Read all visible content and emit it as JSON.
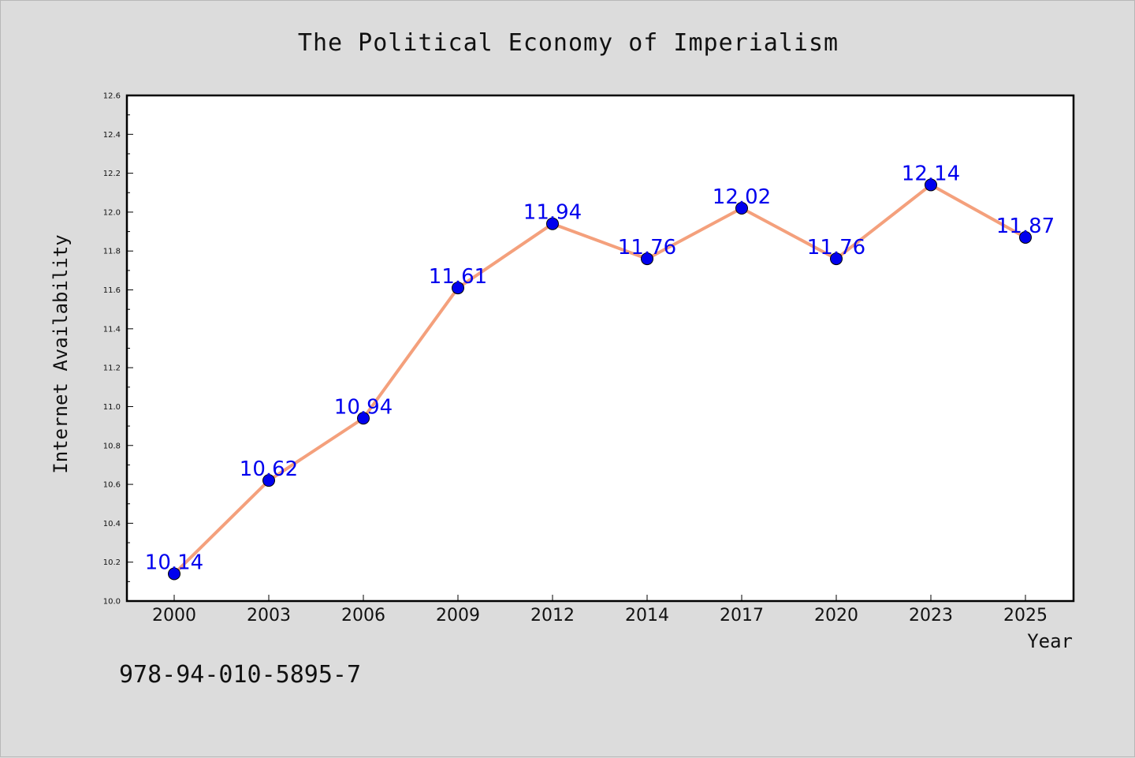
{
  "chart_data": {
    "type": "line",
    "title": "The Political Economy of Imperialism",
    "xlabel": "Year",
    "ylabel": "Internet Availability",
    "categories": [
      "2000",
      "2003",
      "2006",
      "2009",
      "2012",
      "2014",
      "2017",
      "2020",
      "2023",
      "2025"
    ],
    "series": [
      {
        "values": [
          10.14,
          10.62,
          10.94,
          11.61,
          11.94,
          11.76,
          12.02,
          11.76,
          12.14,
          11.87
        ],
        "line_color": "#f4a07c",
        "marker_color": "#0000ee",
        "label_color": "#0000ee"
      }
    ],
    "ylim": [
      10.0,
      12.6
    ],
    "yticks": [
      10.0,
      10.2,
      10.4,
      10.6,
      10.8,
      11.0,
      11.2,
      11.4,
      11.6,
      11.8,
      12.0,
      12.2,
      12.4,
      12.6
    ],
    "grid": false,
    "data_labels": true
  },
  "footer": {
    "isbn": "978-94-010-5895-7"
  },
  "colors": {
    "background": "#dcdcdc",
    "plot_background": "#ffffff"
  }
}
